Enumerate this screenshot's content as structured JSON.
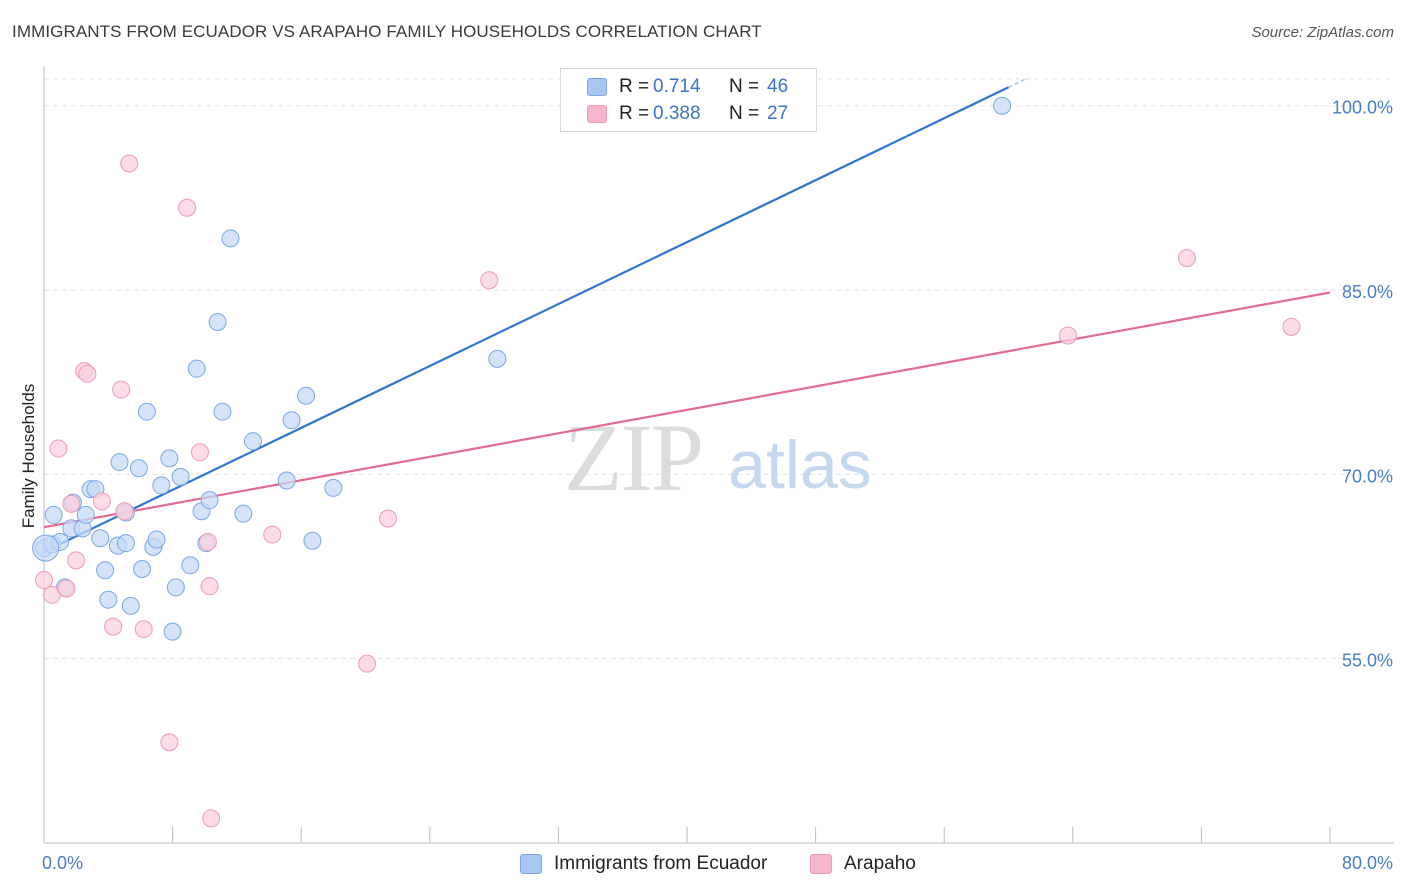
{
  "title": "IMMIGRANTS FROM ECUADOR VS ARAPAHO FAMILY HOUSEHOLDS CORRELATION CHART",
  "source": "Source: ZipAtlas.com",
  "watermark": {
    "zip": "ZIP",
    "atlas": "atlas"
  },
  "legend": {
    "rows": [
      {
        "r_label": "R =",
        "r_value": "0.714",
        "n_label": "N =",
        "n_value": "46",
        "color": "#a8c7f0"
      },
      {
        "r_label": "R =",
        "r_value": "0.388",
        "n_label": "N =",
        "n_value": "27",
        "color": "#f7b5c9"
      }
    ]
  },
  "bottom_legend": [
    {
      "label": "Immigrants from Ecuador",
      "color": "#a8c7f0"
    },
    {
      "label": "Arapaho",
      "color": "#f7b5c9"
    }
  ],
  "chart_data": {
    "type": "scatter",
    "title": "IMMIGRANTS FROM ECUADOR VS ARAPAHO FAMILY HOUSEHOLDS CORRELATION CHART",
    "xlabel": "",
    "ylabel": "Family Households",
    "xlim": [
      0,
      80
    ],
    "ylim": [
      40,
      102.5
    ],
    "x_tick_labels": [
      "0.0%",
      "80.0%"
    ],
    "y_ticks": [
      55,
      70,
      85,
      100
    ],
    "y_tick_labels": [
      "55.0%",
      "70.0%",
      "85.0%",
      "100.0%"
    ],
    "grid": true,
    "legend_position": "top-center",
    "series": [
      {
        "name": "Immigrants from Ecuador",
        "color": "#7aa8e8",
        "fill": "#c5daf6",
        "line_color": "#2f74d0",
        "trend": {
          "x": [
            0,
            60.0
          ],
          "y": [
            63.7,
            101.5
          ]
        },
        "points": [
          [
            0.0,
            64.0
          ],
          [
            0.5,
            64.3
          ],
          [
            0.6,
            66.7
          ],
          [
            1.0,
            64.5
          ],
          [
            1.3,
            60.8
          ],
          [
            1.7,
            65.6
          ],
          [
            1.8,
            67.7
          ],
          [
            2.4,
            65.6
          ],
          [
            2.6,
            66.7
          ],
          [
            2.9,
            68.8
          ],
          [
            3.2,
            68.8
          ],
          [
            3.5,
            64.8
          ],
          [
            3.8,
            62.2
          ],
          [
            4.0,
            59.8
          ],
          [
            4.6,
            64.2
          ],
          [
            4.7,
            71.0
          ],
          [
            5.1,
            64.4
          ],
          [
            5.1,
            66.9
          ],
          [
            5.4,
            59.3
          ],
          [
            5.9,
            70.5
          ],
          [
            6.1,
            62.3
          ],
          [
            6.4,
            75.1
          ],
          [
            6.8,
            64.1
          ],
          [
            7.0,
            64.7
          ],
          [
            7.3,
            69.1
          ],
          [
            7.8,
            71.3
          ],
          [
            8.0,
            57.2
          ],
          [
            8.2,
            60.8
          ],
          [
            8.5,
            69.8
          ],
          [
            9.1,
            62.6
          ],
          [
            9.5,
            78.6
          ],
          [
            9.8,
            67.0
          ],
          [
            10.1,
            64.4
          ],
          [
            10.3,
            67.9
          ],
          [
            10.8,
            82.4
          ],
          [
            11.1,
            75.1
          ],
          [
            11.6,
            89.2
          ],
          [
            12.4,
            66.8
          ],
          [
            13.0,
            72.7
          ],
          [
            15.1,
            69.5
          ],
          [
            15.4,
            74.4
          ],
          [
            16.3,
            76.4
          ],
          [
            16.7,
            64.6
          ],
          [
            18.0,
            68.9
          ],
          [
            28.2,
            79.4
          ],
          [
            59.6,
            100.0
          ]
        ]
      },
      {
        "name": "Arapaho",
        "color": "#f09ab6",
        "fill": "#fbd0dd",
        "line_color": "#e36a94",
        "trend": {
          "x": [
            0,
            80.0
          ],
          "y": [
            65.7,
            84.8
          ]
        },
        "points": [
          [
            0.0,
            61.4
          ],
          [
            0.5,
            60.2
          ],
          [
            0.9,
            72.1
          ],
          [
            1.4,
            60.7
          ],
          [
            1.7,
            67.6
          ],
          [
            2.0,
            63.0
          ],
          [
            2.5,
            78.4
          ],
          [
            2.7,
            78.2
          ],
          [
            3.6,
            67.8
          ],
          [
            4.3,
            57.6
          ],
          [
            4.8,
            76.9
          ],
          [
            5.0,
            67.0
          ],
          [
            5.3,
            95.3
          ],
          [
            6.2,
            57.4
          ],
          [
            7.8,
            48.2
          ],
          [
            8.9,
            91.7
          ],
          [
            9.7,
            71.8
          ],
          [
            10.2,
            64.5
          ],
          [
            10.3,
            60.9
          ],
          [
            10.4,
            42.0
          ],
          [
            14.2,
            65.1
          ],
          [
            20.1,
            54.6
          ],
          [
            21.4,
            66.4
          ],
          [
            27.7,
            85.8
          ],
          [
            63.7,
            81.3
          ],
          [
            71.1,
            87.6
          ],
          [
            77.6,
            82.0
          ]
        ]
      }
    ]
  }
}
